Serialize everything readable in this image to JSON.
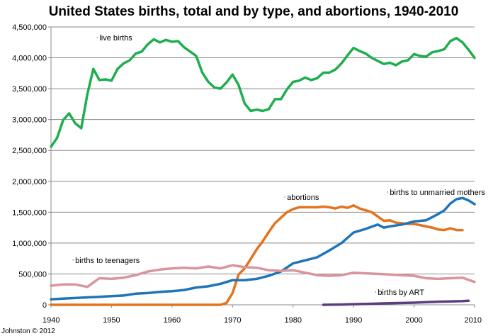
{
  "credit": "Johnston © 2012",
  "chart_data": {
    "type": "line",
    "title": "United States births, total and by type, and abortions, 1940-2010",
    "xlabel": "",
    "ylabel": "",
    "xlim": [
      1940,
      2010
    ],
    "ylim": [
      0,
      4500000
    ],
    "xticks": [
      1940,
      1950,
      1960,
      1970,
      1980,
      1990,
      2000,
      2010
    ],
    "yticks": [
      0,
      500000,
      1000000,
      1500000,
      2000000,
      2500000,
      3000000,
      3500000,
      4000000,
      4500000
    ],
    "ytick_labels": [
      "0",
      "500,000",
      "1,000,000",
      "1,500,000",
      "2,000,000",
      "2,500,000",
      "3,000,000",
      "3,500,000",
      "4,000,000",
      "4,500,000"
    ],
    "grid": "horizontal",
    "legend": "none (series labeled directly)",
    "series": [
      {
        "name": "live births",
        "color": "#1fae4e",
        "x": [
          1940,
          1941,
          1942,
          1943,
          1944,
          1945,
          1946,
          1947,
          1948,
          1949,
          1950,
          1951,
          1952,
          1953,
          1954,
          1955,
          1956,
          1957,
          1958,
          1959,
          1960,
          1961,
          1962,
          1963,
          1964,
          1965,
          1966,
          1967,
          1968,
          1969,
          1970,
          1971,
          1972,
          1973,
          1974,
          1975,
          1976,
          1977,
          1978,
          1979,
          1980,
          1981,
          1982,
          1983,
          1984,
          1985,
          1986,
          1987,
          1988,
          1989,
          1990,
          1991,
          1992,
          1993,
          1994,
          1995,
          1996,
          1997,
          1998,
          1999,
          2000,
          2001,
          2002,
          2003,
          2004,
          2005,
          2006,
          2007,
          2008,
          2009,
          2010
        ],
        "values": [
          2560000,
          2700000,
          2990000,
          3100000,
          2940000,
          2860000,
          3410000,
          3820000,
          3640000,
          3650000,
          3630000,
          3820000,
          3910000,
          3960000,
          4070000,
          4100000,
          4220000,
          4300000,
          4250000,
          4290000,
          4260000,
          4270000,
          4170000,
          4100000,
          4030000,
          3760000,
          3610000,
          3520000,
          3500000,
          3600000,
          3730000,
          3560000,
          3260000,
          3140000,
          3160000,
          3140000,
          3170000,
          3330000,
          3330000,
          3490000,
          3610000,
          3630000,
          3680000,
          3640000,
          3670000,
          3760000,
          3760000,
          3810000,
          3910000,
          4040000,
          4160000,
          4110000,
          4070000,
          4000000,
          3950000,
          3900000,
          3920000,
          3880000,
          3940000,
          3960000,
          4060000,
          4030000,
          4020000,
          4090000,
          4110000,
          4140000,
          4270000,
          4320000,
          4250000,
          4130000,
          4000000
        ],
        "label_year": 1948,
        "label_value": 4280000
      },
      {
        "name": "abortions",
        "color": "#e3731d",
        "x": [
          1940,
          1965,
          1968,
          1969,
          1970,
          1971,
          1972,
          1973,
          1974,
          1975,
          1976,
          1977,
          1978,
          1979,
          1980,
          1981,
          1982,
          1983,
          1984,
          1985,
          1986,
          1987,
          1988,
          1989,
          1990,
          1991,
          1992,
          1993,
          1994,
          1995,
          1996,
          1997,
          1998,
          1999,
          2000,
          2001,
          2002,
          2003,
          2004,
          2005,
          2006,
          2007,
          2008
        ],
        "values": [
          0,
          0,
          0,
          30000,
          190000,
          490000,
          590000,
          740000,
          900000,
          1030000,
          1180000,
          1320000,
          1410000,
          1500000,
          1550000,
          1580000,
          1580000,
          1580000,
          1580000,
          1590000,
          1580000,
          1560000,
          1590000,
          1570000,
          1610000,
          1560000,
          1530000,
          1500000,
          1430000,
          1360000,
          1370000,
          1330000,
          1320000,
          1310000,
          1310000,
          1290000,
          1270000,
          1250000,
          1220000,
          1210000,
          1240000,
          1210000,
          1210000
        ],
        "label_year": 1979,
        "label_value": 1700000
      },
      {
        "name": "births to unmarried mothers",
        "color": "#1f75b9",
        "x": [
          1940,
          1942,
          1944,
          1946,
          1948,
          1950,
          1952,
          1954,
          1956,
          1958,
          1960,
          1962,
          1964,
          1966,
          1968,
          1970,
          1972,
          1974,
          1976,
          1978,
          1980,
          1982,
          1984,
          1986,
          1988,
          1990,
          1992,
          1994,
          1995,
          1996,
          1998,
          2000,
          2002,
          2004,
          2005,
          2006,
          2007,
          2008,
          2009,
          2010
        ],
        "values": [
          90000,
          100000,
          110000,
          120000,
          130000,
          140000,
          150000,
          180000,
          190000,
          210000,
          220000,
          240000,
          280000,
          300000,
          340000,
          400000,
          400000,
          420000,
          470000,
          540000,
          670000,
          720000,
          770000,
          880000,
          1000000,
          1170000,
          1230000,
          1300000,
          1250000,
          1270000,
          1300000,
          1350000,
          1370000,
          1470000,
          1530000,
          1640000,
          1710000,
          1730000,
          1690000,
          1630000
        ],
        "label_year": 1996,
        "label_value": 1780000
      },
      {
        "name": "births to teenagers",
        "color": "#d9959c",
        "x": [
          1940,
          1942,
          1944,
          1946,
          1948,
          1950,
          1952,
          1954,
          1956,
          1958,
          1960,
          1962,
          1964,
          1966,
          1968,
          1970,
          1972,
          1974,
          1976,
          1978,
          1980,
          1982,
          1984,
          1986,
          1988,
          1990,
          1992,
          1994,
          1996,
          1998,
          2000,
          2002,
          2004,
          2006,
          2008,
          2010
        ],
        "values": [
          310000,
          330000,
          330000,
          290000,
          430000,
          420000,
          440000,
          480000,
          540000,
          570000,
          590000,
          600000,
          590000,
          620000,
          590000,
          640000,
          610000,
          600000,
          560000,
          550000,
          560000,
          520000,
          480000,
          470000,
          480000,
          520000,
          510000,
          500000,
          490000,
          480000,
          470000,
          430000,
          420000,
          430000,
          440000,
          370000
        ],
        "label_year": 1944,
        "label_value": 680000
      },
      {
        "name": "births by ART",
        "color": "#5b3d80",
        "x": [
          1985,
          1988,
          1990,
          1992,
          1994,
          1996,
          1998,
          2000,
          2002,
          2004,
          2006,
          2008,
          2009
        ],
        "values": [
          0,
          5000,
          10000,
          15000,
          20000,
          25000,
          30000,
          35000,
          42000,
          50000,
          55000,
          60000,
          65000
        ],
        "label_year": 1994,
        "label_value": 160000
      }
    ]
  }
}
